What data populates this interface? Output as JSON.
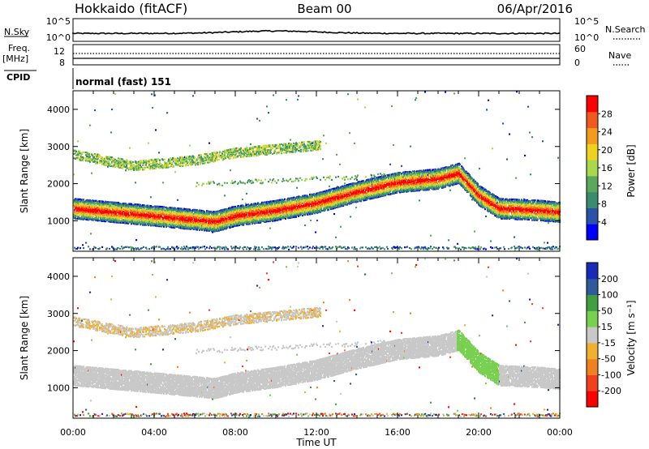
{
  "header": {
    "station": "Hokkaido (fitACF)",
    "beam": "Beam 00",
    "date": "06/Apr/2016"
  },
  "noise_panel": {
    "left_label": "N.Sky",
    "right_label": "N.Search",
    "ticks": [
      "10^5",
      "10^0"
    ],
    "right_ticks": [
      "10^5",
      "10^0"
    ]
  },
  "freq_panel": {
    "left_label_line1": "Freq.",
    "left_label_line2": "[MHz]",
    "left_ticks": [
      "12",
      "8"
    ],
    "right_label": "Nave",
    "right_ticks": [
      "60",
      "0"
    ]
  },
  "cpid": {
    "label": "CPID",
    "mode": "normal (fast) 151"
  },
  "chart_data": [
    {
      "type": "heatmap",
      "panel": "power",
      "ylabel": "Slant Range [km]",
      "xlabel": "Time UT",
      "xlim": [
        "00:00",
        "00:00"
      ],
      "ylim": [
        180,
        4500
      ],
      "y_ticks": [
        1000,
        2000,
        3000,
        4000
      ],
      "x_ticks": [
        "00:00",
        "04:00",
        "08:00",
        "12:00",
        "16:00",
        "20:00",
        "00:00"
      ],
      "colorbar": {
        "label": "Power [dB]",
        "ticks": [
          "28",
          "24",
          "20",
          "16",
          "12",
          "8",
          "4"
        ],
        "colors": [
          "#0000ff",
          "#2a52a8",
          "#3a8c6e",
          "#5aa85a",
          "#a8d84c",
          "#f0d020",
          "#f59a20",
          "#f05a20",
          "#ff0000"
        ]
      },
      "bands": [
        {
          "name": "main-echo",
          "points": [
            [
              0.0,
              1350
            ],
            [
              2.0,
              1250
            ],
            [
              4.0,
              1150
            ],
            [
              6.0,
              1050
            ],
            [
              7.0,
              1000
            ],
            [
              8.0,
              1150
            ],
            [
              10.0,
              1300
            ],
            [
              12.0,
              1500
            ],
            [
              14.0,
              1800
            ],
            [
              16.0,
              2050
            ],
            [
              18.0,
              2150
            ],
            [
              19.0,
              2300
            ],
            [
              20.0,
              1700
            ],
            [
              21.0,
              1350
            ],
            [
              23.0,
              1300
            ],
            [
              24.0,
              1250
            ]
          ]
        },
        {
          "name": "upper-echo",
          "points": [
            [
              0.0,
              2800
            ],
            [
              3.0,
              2500
            ],
            [
              6.0,
              2650
            ],
            [
              8.0,
              2850
            ],
            [
              10.0,
              2950
            ],
            [
              12.0,
              3050
            ]
          ]
        }
      ]
    },
    {
      "type": "heatmap",
      "panel": "velocity",
      "ylabel": "Slant Range [km]",
      "xlabel": "Time UT",
      "xlim": [
        "00:00",
        "00:00"
      ],
      "ylim": [
        180,
        4500
      ],
      "y_ticks": [
        1000,
        2000,
        3000,
        4000
      ],
      "x_ticks": [
        "00:00",
        "04:00",
        "08:00",
        "12:00",
        "16:00",
        "20:00",
        "00:00"
      ],
      "colorbar": {
        "label": "Velocity [m s⁻¹]",
        "ticks": [
          "200",
          "100",
          "50",
          "15",
          "-15",
          "-50",
          "-100",
          "-200"
        ],
        "colors": [
          "#ff0000",
          "#f04020",
          "#f08020",
          "#f0b030",
          "#c8c8c8",
          "#78d050",
          "#40a040",
          "#305a9a",
          "#1a2ab8"
        ]
      }
    }
  ]
}
